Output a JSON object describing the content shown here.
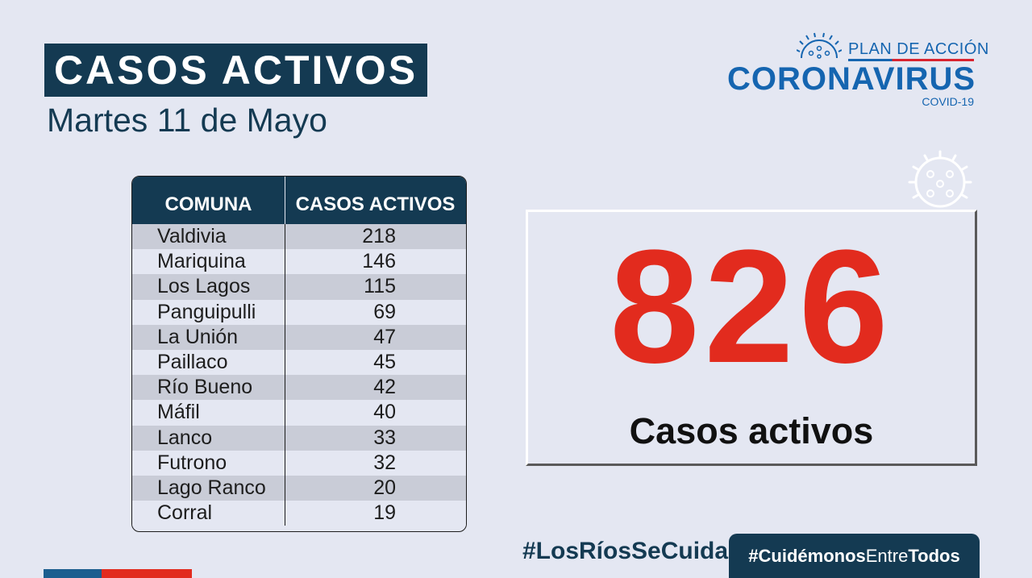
{
  "header": {
    "title": "CASOS ACTIVOS",
    "date": "Martes 11 de Mayo"
  },
  "logo": {
    "plan": "PLAN DE ACCIÓN",
    "main": "CORONAVIRUS",
    "sub": "COVID-19",
    "icon": "coronavirus-icon"
  },
  "table": {
    "columns": [
      "COMUNA",
      "CASOS ACTIVOS"
    ],
    "rows": [
      {
        "comuna": "Valdivia",
        "casos": "218"
      },
      {
        "comuna": "Mariquina",
        "casos": "146"
      },
      {
        "comuna": "Los Lagos",
        "casos": "115"
      },
      {
        "comuna": "Panguipulli",
        "casos": "69"
      },
      {
        "comuna": "La Unión",
        "casos": "47"
      },
      {
        "comuna": "Paillaco",
        "casos": "45"
      },
      {
        "comuna": "Río Bueno",
        "casos": "42"
      },
      {
        "comuna": "Máfil",
        "casos": "40"
      },
      {
        "comuna": "Lanco",
        "casos": "33"
      },
      {
        "comuna": "Futrono",
        "casos": "32"
      },
      {
        "comuna": "Lago Ranco",
        "casos": "20"
      },
      {
        "comuna": "Corral",
        "casos": "19"
      }
    ]
  },
  "summary": {
    "total": "826",
    "label": "Casos activos"
  },
  "footer": {
    "hashtag_left": "#LosRíosSeCuida",
    "hashtag_right_bold1": "#Cuidémonos",
    "hashtag_right_thin": "Entre",
    "hashtag_right_bold2": "Todos"
  },
  "colors": {
    "navy": "#143a52",
    "blue": "#1565b0",
    "red": "#e22b1e",
    "background": "#e4e7f2"
  }
}
